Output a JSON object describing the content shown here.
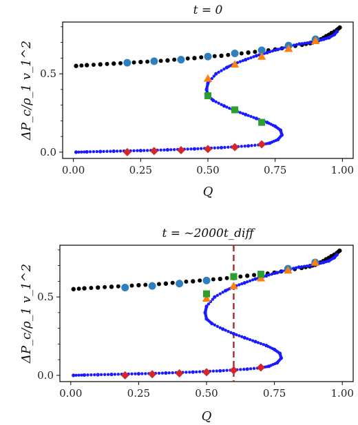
{
  "chart_data": [
    {
      "type": "scatter",
      "title": "t = 0",
      "xlabel": "Q",
      "ylabel": "ΔP_c/ρ_1 v_1^2",
      "xlim": [
        -0.04,
        1.04
      ],
      "ylim": [
        -0.04,
        0.83
      ],
      "x_ticks": [
        0.0,
        0.25,
        0.5,
        0.75,
        1.0
      ],
      "x_tick_labels": [
        "0.00",
        "0.25",
        "0.50",
        "0.75",
        "1.00"
      ],
      "y_ticks": [
        0.0,
        0.5
      ],
      "y_tick_labels": [
        "0.0",
        "0.5"
      ],
      "grid": false,
      "vline": null,
      "series": [
        {
          "marker": "dot",
          "color": "#000000",
          "x": [
            0.01,
            0.05,
            0.1,
            0.15,
            0.2,
            0.25,
            0.3,
            0.35,
            0.4,
            0.45,
            0.5,
            0.55,
            0.6,
            0.65,
            0.7,
            0.75,
            0.8,
            0.85,
            0.88,
            0.9,
            0.92,
            0.94,
            0.96,
            0.98,
            0.99
          ],
          "y": [
            0.55,
            0.555,
            0.56,
            0.565,
            0.57,
            0.575,
            0.58,
            0.585,
            0.595,
            0.6,
            0.61,
            0.615,
            0.625,
            0.635,
            0.645,
            0.655,
            0.67,
            0.685,
            0.695,
            0.705,
            0.72,
            0.74,
            0.76,
            0.78,
            0.795
          ]
        },
        {
          "marker": "star",
          "color": "#1a1aff",
          "x": [
            0.01,
            0.05,
            0.1,
            0.15,
            0.2,
            0.25,
            0.3,
            0.35,
            0.4,
            0.45,
            0.5,
            0.55,
            0.6,
            0.65,
            0.7,
            0.73,
            0.76,
            0.775,
            0.77,
            0.75,
            0.72,
            0.68,
            0.64,
            0.6,
            0.56,
            0.52,
            0.5,
            0.495,
            0.5,
            0.53,
            0.57,
            0.6,
            0.64,
            0.68,
            0.72,
            0.76,
            0.8,
            0.84,
            0.88,
            0.9,
            0.93,
            0.95,
            0.97,
            0.98
          ],
          "y": [
            0.0,
            0.002,
            0.004,
            0.006,
            0.008,
            0.01,
            0.012,
            0.015,
            0.018,
            0.021,
            0.025,
            0.029,
            0.034,
            0.04,
            0.048,
            0.058,
            0.08,
            0.11,
            0.14,
            0.165,
            0.19,
            0.215,
            0.24,
            0.265,
            0.295,
            0.33,
            0.36,
            0.4,
            0.44,
            0.5,
            0.54,
            0.565,
            0.59,
            0.615,
            0.635,
            0.655,
            0.675,
            0.69,
            0.7,
            0.71,
            0.72,
            0.73,
            0.75,
            0.77
          ]
        },
        {
          "marker": "circle",
          "color": "#2f7fbf",
          "x": [
            0.2,
            0.3,
            0.4,
            0.5,
            0.6,
            0.7,
            0.8,
            0.9
          ],
          "y": [
            0.57,
            0.58,
            0.59,
            0.61,
            0.63,
            0.65,
            0.68,
            0.72
          ]
        },
        {
          "marker": "triangle",
          "color": "#ff7f0e",
          "x": [
            0.5,
            0.6,
            0.7,
            0.8,
            0.9
          ],
          "y": [
            0.47,
            0.56,
            0.61,
            0.66,
            0.71
          ]
        },
        {
          "marker": "square",
          "color": "#2ca02c",
          "x": [
            0.5,
            0.6,
            0.7
          ],
          "y": [
            0.36,
            0.27,
            0.19
          ]
        },
        {
          "marker": "diamond",
          "color": "#d62728",
          "x": [
            0.2,
            0.3,
            0.4,
            0.5,
            0.6,
            0.7
          ],
          "y": [
            0.0,
            0.007,
            0.013,
            0.02,
            0.032,
            0.05
          ]
        }
      ]
    },
    {
      "type": "scatter",
      "title": "t = ~2000t_diff",
      "xlabel": "Q",
      "ylabel": "ΔP_c/ρ_1 v_1^2",
      "xlim": [
        -0.04,
        1.04
      ],
      "ylim": [
        -0.04,
        0.83
      ],
      "x_ticks": [
        0.0,
        0.25,
        0.5,
        0.75,
        1.0
      ],
      "x_tick_labels": [
        "0.00",
        "0.25",
        "0.50",
        "0.75",
        "1.00"
      ],
      "y_ticks": [
        0.0,
        0.5
      ],
      "y_tick_labels": [
        "0.0",
        "0.5"
      ],
      "grid": false,
      "vline": {
        "x": 0.6,
        "color": "#a52a2a",
        "style": "dashed"
      },
      "series": [
        {
          "marker": "dot",
          "color": "#000000",
          "x": [
            0.01,
            0.05,
            0.1,
            0.15,
            0.2,
            0.25,
            0.3,
            0.35,
            0.4,
            0.45,
            0.5,
            0.55,
            0.6,
            0.65,
            0.7,
            0.75,
            0.8,
            0.85,
            0.88,
            0.9,
            0.92,
            0.94,
            0.96,
            0.98,
            0.99
          ],
          "y": [
            0.55,
            0.555,
            0.56,
            0.565,
            0.57,
            0.575,
            0.58,
            0.585,
            0.595,
            0.6,
            0.61,
            0.615,
            0.625,
            0.635,
            0.645,
            0.655,
            0.67,
            0.685,
            0.695,
            0.705,
            0.72,
            0.74,
            0.76,
            0.78,
            0.795
          ]
        },
        {
          "marker": "star",
          "color": "#1a1aff",
          "x": [
            0.01,
            0.05,
            0.1,
            0.15,
            0.2,
            0.25,
            0.3,
            0.35,
            0.4,
            0.45,
            0.5,
            0.55,
            0.6,
            0.65,
            0.7,
            0.73,
            0.76,
            0.775,
            0.77,
            0.75,
            0.72,
            0.68,
            0.64,
            0.6,
            0.56,
            0.52,
            0.5,
            0.495,
            0.5,
            0.53,
            0.57,
            0.6,
            0.64,
            0.68,
            0.72,
            0.76,
            0.8,
            0.84,
            0.88,
            0.9,
            0.93,
            0.95,
            0.97,
            0.98
          ],
          "y": [
            0.0,
            0.002,
            0.004,
            0.006,
            0.008,
            0.01,
            0.012,
            0.015,
            0.018,
            0.021,
            0.025,
            0.029,
            0.034,
            0.04,
            0.048,
            0.058,
            0.08,
            0.11,
            0.14,
            0.165,
            0.19,
            0.215,
            0.24,
            0.265,
            0.295,
            0.33,
            0.36,
            0.4,
            0.44,
            0.5,
            0.54,
            0.565,
            0.59,
            0.615,
            0.635,
            0.655,
            0.675,
            0.69,
            0.7,
            0.71,
            0.72,
            0.73,
            0.75,
            0.77
          ]
        },
        {
          "marker": "circle",
          "color": "#2f7fbf",
          "x": [
            0.2,
            0.3,
            0.4,
            0.5,
            0.8,
            0.9
          ],
          "y": [
            0.56,
            0.57,
            0.585,
            0.605,
            0.68,
            0.72
          ]
        },
        {
          "marker": "triangle",
          "color": "#ff7f0e",
          "x": [
            0.5,
            0.6,
            0.7,
            0.8,
            0.9
          ],
          "y": [
            0.49,
            0.57,
            0.62,
            0.67,
            0.72
          ]
        },
        {
          "marker": "square",
          "color": "#2ca02c",
          "x": [
            0.5,
            0.6,
            0.7
          ],
          "y": [
            0.52,
            0.63,
            0.645
          ]
        },
        {
          "marker": "diamond",
          "color": "#d62728",
          "x": [
            0.2,
            0.3,
            0.4,
            0.5,
            0.6,
            0.7
          ],
          "y": [
            0.0,
            0.007,
            0.013,
            0.02,
            0.032,
            0.05
          ]
        }
      ]
    }
  ]
}
